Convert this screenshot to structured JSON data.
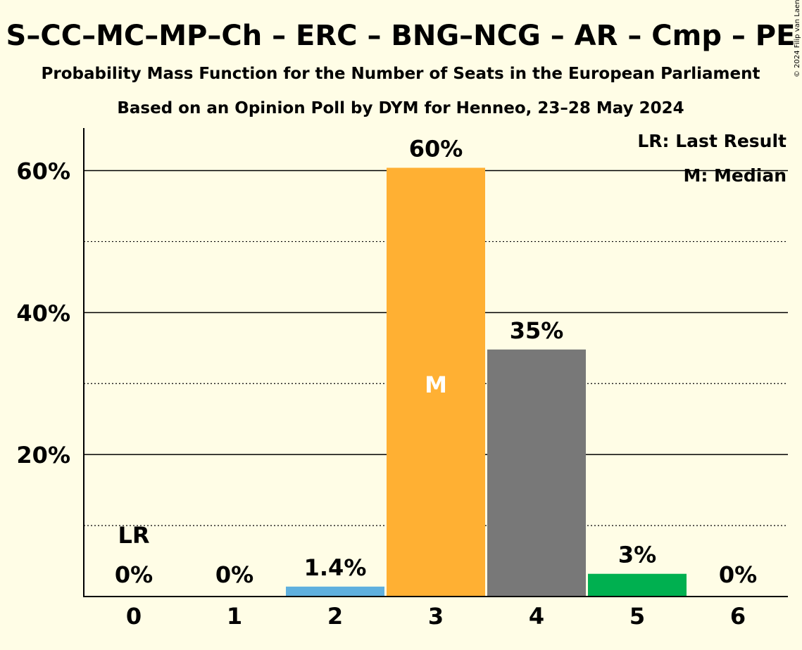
{
  "chart_data": {
    "type": "bar",
    "title": "S–CC–MC–MP–Ch – ERC – BNG–NCG – AR – Cmp – PE",
    "subtitle1": "Probability Mass Function for the Number of Seats in the European Parliament",
    "subtitle2": "Based on an Opinion Poll by DYM for Henneo, 23–28 May 2024",
    "copyright": "© 2024 Filip van Laenen",
    "categories": [
      "0",
      "1",
      "2",
      "3",
      "4",
      "5",
      "6"
    ],
    "values": [
      0,
      0,
      1.4,
      60.4,
      34.8,
      3.2,
      0
    ],
    "value_labels": [
      "0%",
      "0%",
      "1.4%",
      "60%",
      "35%",
      "3%",
      "0%"
    ],
    "bar_colors": [
      "#5FB0DE",
      "#5FB0DE",
      "#5FB0DE",
      "#FFB033",
      "#787878",
      "#00B050",
      "#5FB0DE"
    ],
    "ylim": [
      0,
      66
    ],
    "yticks_major": [
      20,
      40,
      60
    ],
    "ytick_labels": [
      "20%",
      "40%",
      "60%"
    ],
    "yticks_minor": [
      10,
      30,
      50
    ],
    "last_result_index": 0,
    "last_result_label": "LR",
    "median_index": 3,
    "median_label": "M",
    "legend": [
      "LR: Last Result",
      "M: Median"
    ],
    "legend_position": "top-right",
    "grid": true
  }
}
